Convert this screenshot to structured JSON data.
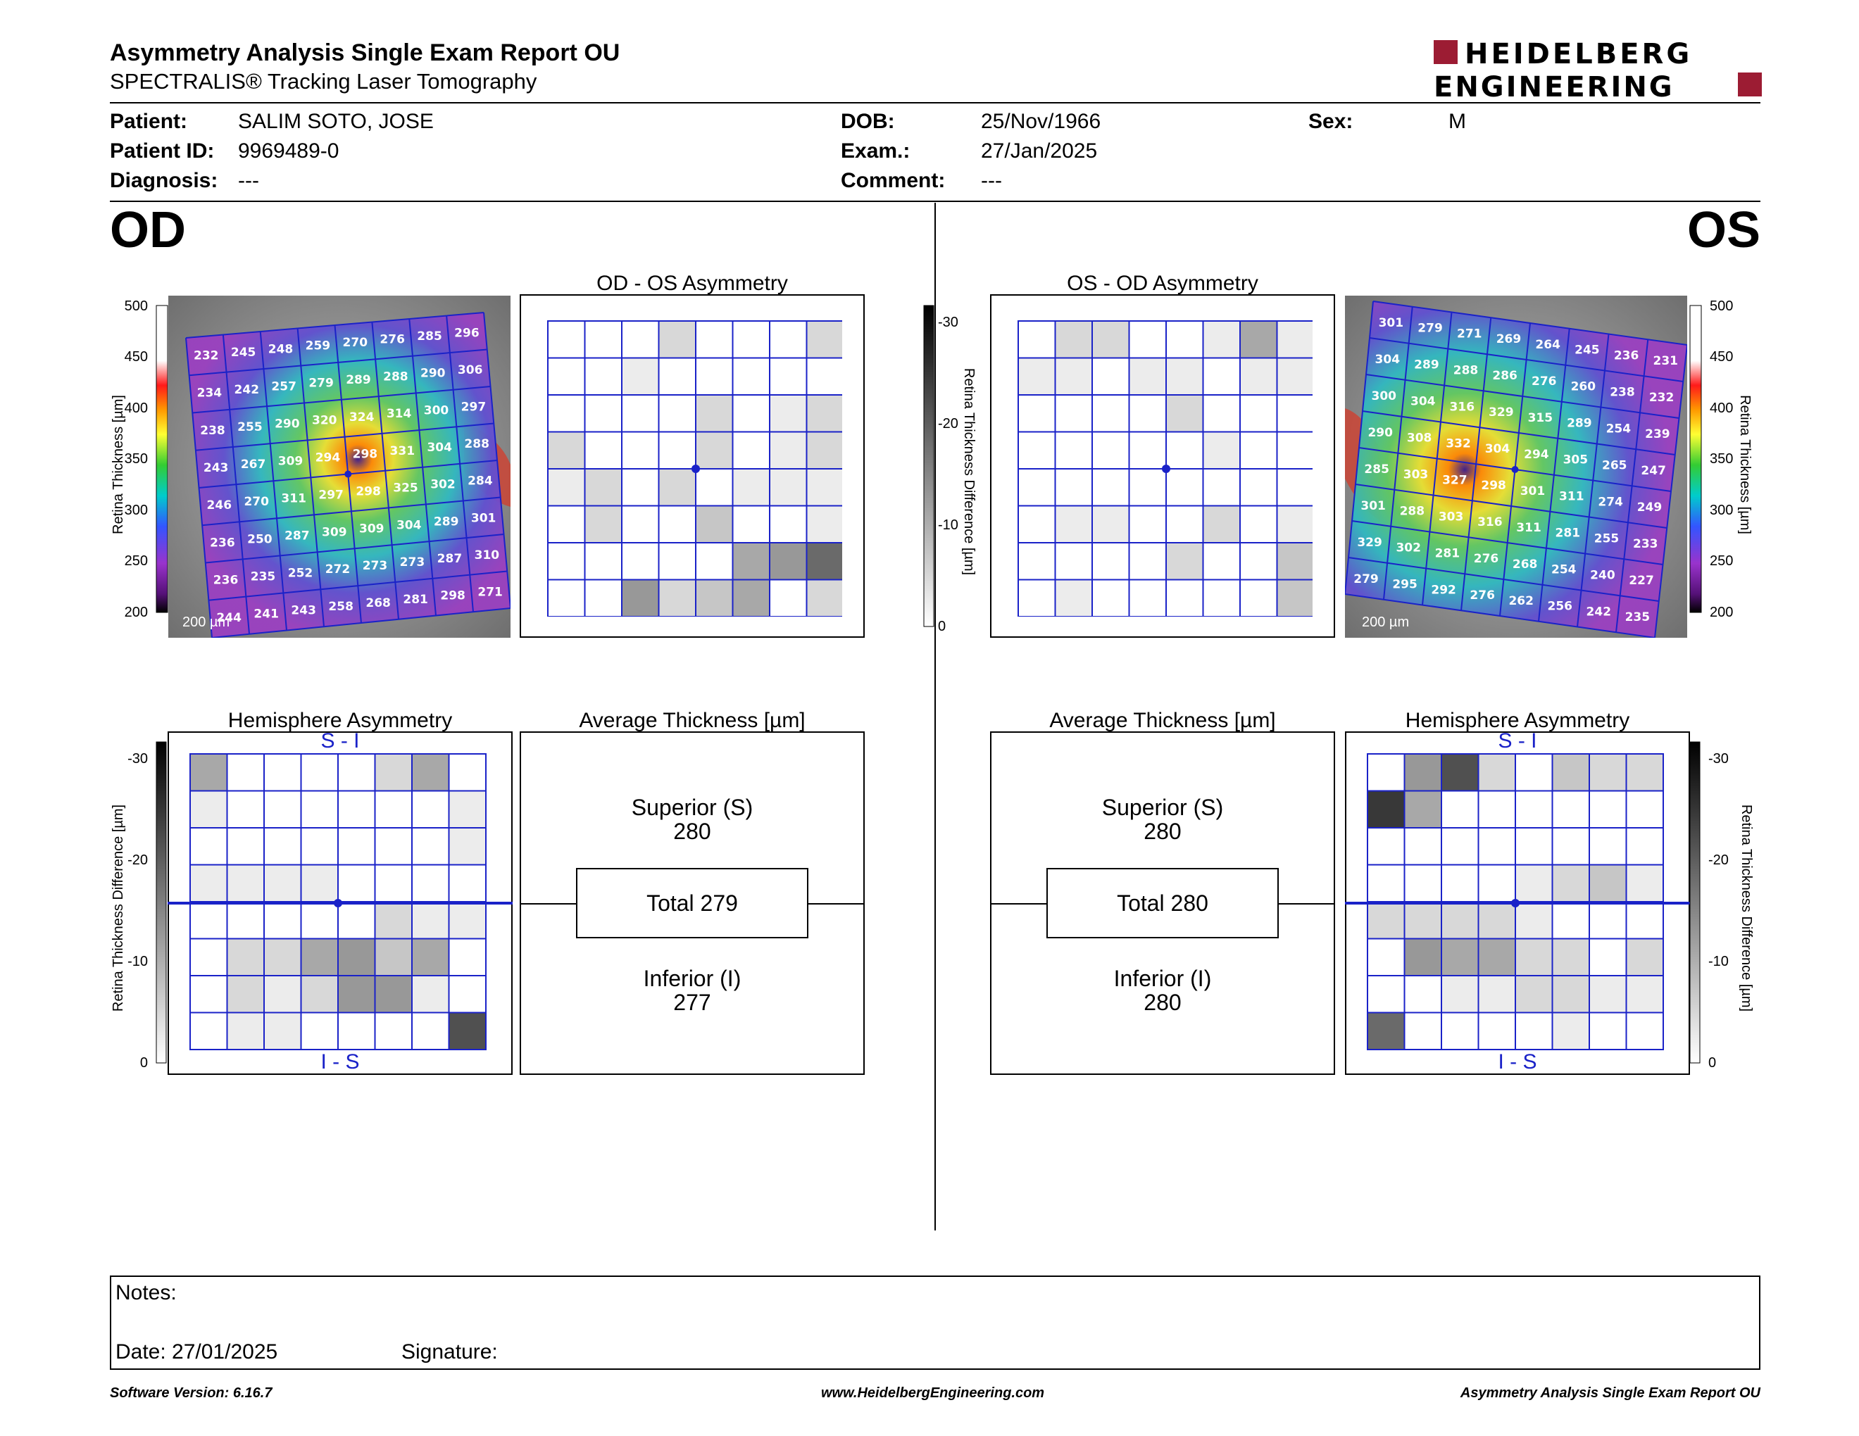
{
  "header": {
    "title": "Asymmetry Analysis Single Exam Report OU",
    "subtitle": "SPECTRALIS® Tracking Laser Tomography",
    "logo_line1": "HEIDELBERG",
    "logo_line2": "ENGINEERING"
  },
  "patient": {
    "patient_label": "Patient:",
    "patient_value": "SALIM SOTO, JOSE",
    "id_label": "Patient ID:",
    "id_value": "9969489-0",
    "diagnosis_label": "Diagnosis:",
    "diagnosis_value": "---",
    "dob_label": "DOB:",
    "dob_value": "25/Nov/1966",
    "exam_label": "Exam.:",
    "exam_value": "27/Jan/2025",
    "comment_label": "Comment:",
    "comment_value": "---",
    "sex_label": "Sex:",
    "sex_value": "M"
  },
  "od": {
    "eye": "OD",
    "asym_title": "OD - OS Asymmetry",
    "hemi_title": "Hemisphere Asymmetry",
    "avg_title": "Average Thickness [µm]",
    "superior_label": "Superior (S)",
    "superior_value": "280",
    "total_label": "Total 279",
    "inferior_label": "Inferior (I)",
    "inferior_value": "277",
    "si_label": "S - I",
    "is_label": "I - S",
    "scale_label": "200 µm",
    "thickness": [
      [
        232,
        245,
        248,
        259,
        270,
        276,
        285,
        296
      ],
      [
        234,
        242,
        257,
        279,
        289,
        288,
        290,
        306
      ],
      [
        238,
        255,
        290,
        320,
        324,
        314,
        300,
        297
      ],
      [
        243,
        267,
        309,
        294,
        298,
        331,
        304,
        288
      ],
      [
        246,
        270,
        311,
        297,
        298,
        325,
        302,
        284
      ],
      [
        236,
        250,
        287,
        309,
        309,
        304,
        289,
        301
      ],
      [
        236,
        235,
        252,
        272,
        273,
        273,
        287,
        310
      ],
      [
        244,
        241,
        243,
        258,
        268,
        281,
        298,
        271
      ]
    ],
    "asym_gray": [
      [
        0,
        0,
        0,
        2,
        0,
        0,
        0,
        2
      ],
      [
        0,
        0,
        1,
        0,
        0,
        0,
        0,
        0
      ],
      [
        0,
        0,
        0,
        0,
        2,
        0,
        1,
        2
      ],
      [
        2,
        0,
        0,
        0,
        2,
        0,
        1,
        2
      ],
      [
        1,
        2,
        0,
        2,
        0,
        1,
        1,
        1
      ],
      [
        0,
        2,
        0,
        0,
        3,
        0,
        0,
        1
      ],
      [
        0,
        0,
        0,
        0,
        0,
        4,
        5,
        7
      ],
      [
        0,
        0,
        5,
        2,
        3,
        4,
        0,
        2
      ]
    ],
    "hemi_gray": [
      [
        4,
        0,
        0,
        0,
        0,
        2,
        4,
        0
      ],
      [
        1,
        0,
        0,
        0,
        0,
        0,
        0,
        1
      ],
      [
        0,
        0,
        0,
        0,
        0,
        0,
        0,
        1
      ],
      [
        1,
        1,
        1,
        1,
        0,
        0,
        0,
        0
      ],
      [
        0,
        0,
        0,
        0,
        0,
        2,
        1,
        1
      ],
      [
        0,
        2,
        2,
        4,
        5,
        3,
        4,
        0
      ],
      [
        0,
        2,
        1,
        2,
        5,
        5,
        1,
        0
      ],
      [
        0,
        1,
        1,
        0,
        0,
        0,
        0,
        8
      ]
    ]
  },
  "os": {
    "eye": "OS",
    "asym_title": "OS - OD Asymmetry",
    "hemi_title": "Hemisphere Asymmetry",
    "avg_title": "Average Thickness [µm]",
    "superior_label": "Superior (S)",
    "superior_value": "280",
    "total_label": "Total 280",
    "inferior_label": "Inferior (I)",
    "inferior_value": "280",
    "si_label": "S - I",
    "is_label": "I - S",
    "scale_label": "200 µm",
    "thickness": [
      [
        301,
        279,
        271,
        269,
        264,
        245,
        236,
        231
      ],
      [
        304,
        289,
        288,
        286,
        276,
        260,
        238,
        232
      ],
      [
        300,
        304,
        316,
        329,
        315,
        289,
        254,
        239
      ],
      [
        290,
        308,
        332,
        304,
        294,
        305,
        265,
        247
      ],
      [
        285,
        303,
        327,
        298,
        301,
        311,
        274,
        249
      ],
      [
        301,
        288,
        303,
        316,
        311,
        281,
        255,
        233
      ],
      [
        329,
        302,
        281,
        276,
        268,
        254,
        240,
        227
      ],
      [
        279,
        295,
        292,
        276,
        262,
        256,
        242,
        235
      ]
    ],
    "asym_gray": [
      [
        0,
        2,
        2,
        0,
        0,
        1,
        4,
        1
      ],
      [
        1,
        1,
        0,
        1,
        1,
        0,
        1,
        1
      ],
      [
        0,
        0,
        0,
        0,
        2,
        0,
        0,
        0
      ],
      [
        0,
        0,
        0,
        0,
        0,
        1,
        0,
        0
      ],
      [
        0,
        0,
        0,
        0,
        0,
        0,
        0,
        0
      ],
      [
        0,
        1,
        1,
        0,
        0,
        2,
        0,
        1
      ],
      [
        0,
        0,
        0,
        0,
        2,
        0,
        0,
        3
      ],
      [
        0,
        1,
        0,
        0,
        0,
        0,
        0,
        3
      ]
    ],
    "hemi_gray": [
      [
        0,
        5,
        8,
        2,
        0,
        3,
        2,
        2
      ],
      [
        9,
        4,
        0,
        0,
        0,
        0,
        0,
        0
      ],
      [
        0,
        0,
        0,
        0,
        0,
        0,
        0,
        0
      ],
      [
        0,
        0,
        0,
        0,
        1,
        2,
        3,
        1
      ],
      [
        2,
        2,
        2,
        2,
        1,
        0,
        0,
        0
      ],
      [
        0,
        5,
        4,
        4,
        2,
        2,
        0,
        2
      ],
      [
        0,
        0,
        1,
        1,
        2,
        2,
        1,
        1
      ],
      [
        7,
        0,
        0,
        0,
        0,
        1,
        0,
        0
      ]
    ]
  },
  "colorbar": {
    "thickness_label": "Retina  Thickness [µm]",
    "thickness_ticks": [
      "500",
      "450",
      "400",
      "350",
      "300",
      "250",
      "200"
    ],
    "diff_label": "Retina Thickness Difference [µm]",
    "diff_ticks": [
      "-30",
      "-20",
      "-10",
      "0"
    ]
  },
  "notes": {
    "notes_label": "Notes:",
    "date_label": "Date: 27/01/2025",
    "signature_label": "Signature:"
  },
  "footer": {
    "left": "Software Version: 6.16.7",
    "center": "www.HeidelbergEngineering.com",
    "right": "Asymmetry Analysis Single Exam Report OU"
  },
  "colors": {
    "grid_blue": "#1a22c8",
    "brand_red": "#9c1c33"
  }
}
